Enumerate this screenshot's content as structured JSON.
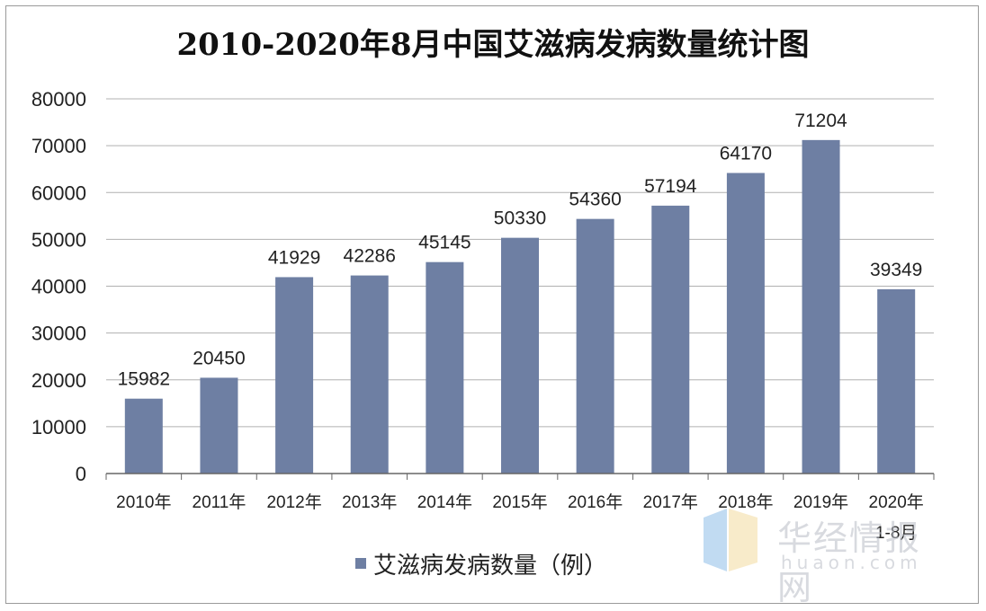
{
  "chart_data": {
    "type": "bar",
    "title": "2010-2020年8月中国艾滋病发病数量统计图",
    "categories": [
      "2010年",
      "2011年",
      "2012年",
      "2013年",
      "2014年",
      "2015年",
      "2016年",
      "2017年",
      "2018年",
      "2019年",
      "2020年"
    ],
    "category_sublabels": [
      "",
      "",
      "",
      "",
      "",
      "",
      "",
      "",
      "",
      "",
      "1-8月"
    ],
    "series": [
      {
        "name": "艾滋病发病数量（例）",
        "values": [
          15982,
          20450,
          41929,
          42286,
          45145,
          50330,
          54360,
          57194,
          64170,
          71204,
          39349
        ]
      }
    ],
    "ylim": [
      0,
      80000
    ],
    "yticks": [
      "0",
      "10000",
      "20000",
      "30000",
      "40000",
      "50000",
      "60000",
      "70000",
      "80000"
    ],
    "ytick_values": [
      0,
      10000,
      20000,
      30000,
      40000,
      50000,
      60000,
      70000,
      80000
    ],
    "grid": true,
    "legend_position": "bottom",
    "colors": {
      "bar": "#6e7fa3",
      "grid": "#b0b0b0",
      "axis": "#666666"
    }
  },
  "watermark": {
    "text": "华经情报网",
    "url_text": "huaon.com"
  }
}
